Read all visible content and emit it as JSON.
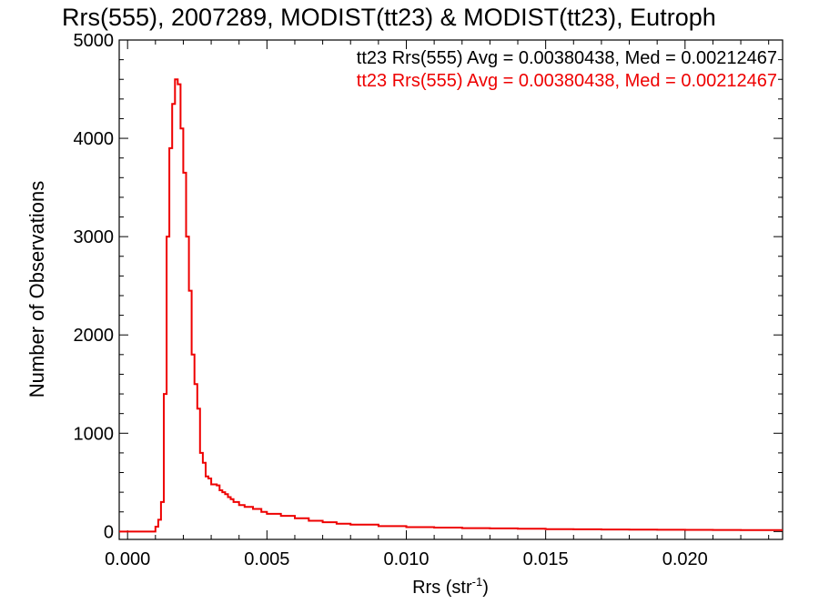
{
  "chart_data": {
    "type": "line",
    "title": "Rrs(555), 2007289, MODIST(tt23) & MODIST(tt23), Eutroph",
    "xlabel": "Rrs (str",
    "xlabel_sup": "-1",
    "xlabel_close": ")",
    "ylabel": "Number of Observations",
    "xlim": [
      -0.0003,
      0.0235
    ],
    "ylim": [
      -80,
      5000
    ],
    "xticks": [
      0.0,
      0.005,
      0.01,
      0.015,
      0.02
    ],
    "xtick_labels": [
      "0.000",
      "0.005",
      "0.010",
      "0.015",
      "0.020"
    ],
    "yticks": [
      0,
      1000,
      2000,
      3000,
      4000,
      5000
    ],
    "ytick_labels": [
      "0",
      "1000",
      "2000",
      "3000",
      "4000",
      "5000"
    ],
    "legend_placement": "top-right",
    "annotations": [
      {
        "text": "tt23 Rrs(555) Avg = 0.00380438, Med = 0.00212467",
        "color": "#000000"
      },
      {
        "text": "tt23 Rrs(555) Avg = 0.00380438, Med = 0.00212467",
        "color": "#ee0000"
      }
    ],
    "series": [
      {
        "color": "#ee0000",
        "x": [
          -0.0003,
          0.0008,
          0.001,
          0.0011,
          0.0012,
          0.0013,
          0.0014,
          0.0015,
          0.0016,
          0.0017,
          0.0018,
          0.0019,
          0.002,
          0.0021,
          0.0022,
          0.0023,
          0.0024,
          0.0025,
          0.0026,
          0.0027,
          0.0028,
          0.0029,
          0.003,
          0.0031,
          0.0032,
          0.0033,
          0.0034,
          0.0035,
          0.0036,
          0.0037,
          0.0038,
          0.004,
          0.0042,
          0.0045,
          0.0048,
          0.005,
          0.0055,
          0.006,
          0.0065,
          0.007,
          0.0075,
          0.008,
          0.009,
          0.01,
          0.011,
          0.012,
          0.013,
          0.014,
          0.015,
          0.016,
          0.017,
          0.018,
          0.019,
          0.02,
          0.021,
          0.022,
          0.023,
          0.0235
        ],
        "y": [
          0,
          0,
          50,
          120,
          300,
          1400,
          3000,
          3900,
          4350,
          4600,
          4550,
          4100,
          3650,
          3000,
          2450,
          1800,
          1500,
          1250,
          800,
          700,
          560,
          540,
          480,
          480,
          470,
          420,
          400,
          380,
          350,
          330,
          300,
          270,
          250,
          230,
          200,
          180,
          160,
          135,
          110,
          95,
          80,
          70,
          55,
          45,
          40,
          35,
          32,
          28,
          25,
          23,
          21,
          20,
          18,
          17,
          16,
          15,
          14,
          14
        ]
      }
    ]
  }
}
